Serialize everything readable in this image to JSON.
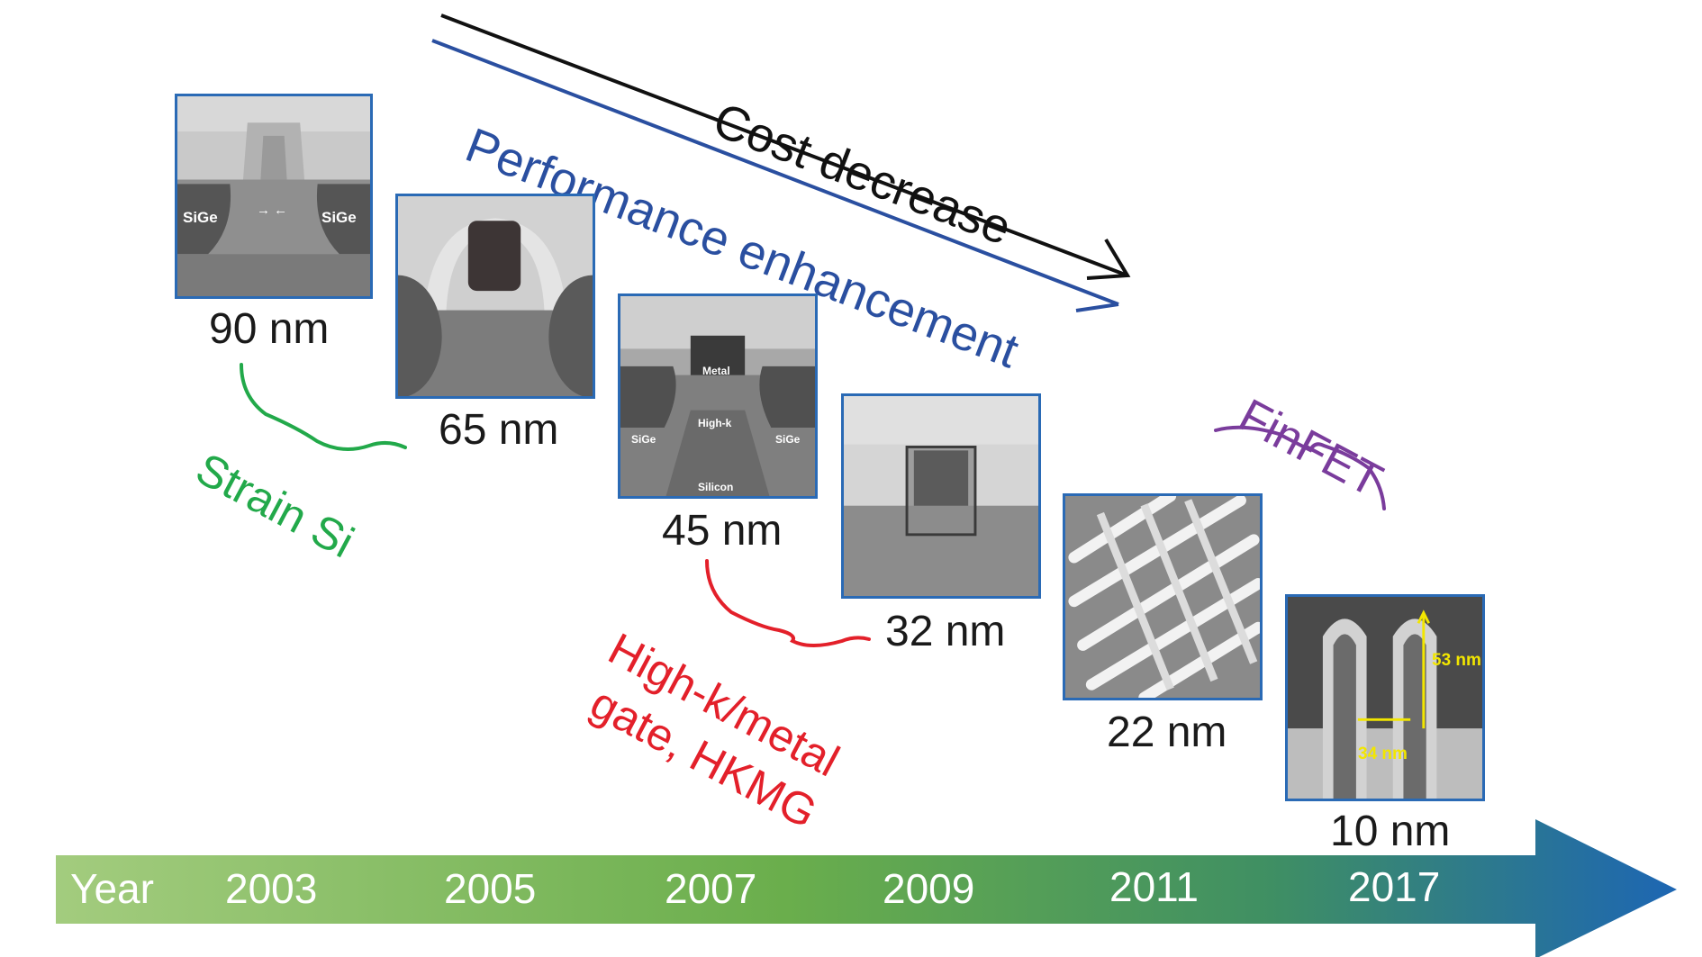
{
  "timeline": {
    "axis_label": "Year",
    "years": [
      "2003",
      "2005",
      "2007",
      "2009",
      "2011",
      "2017"
    ],
    "colors": {
      "start": "#9bc875",
      "mid": "#5aa04a",
      "end": "#1d66b3"
    }
  },
  "trend_arrows": {
    "cost": {
      "label": "Cost decrease",
      "color": "#111111"
    },
    "performance": {
      "label": "Performance enhancement",
      "color": "#2a4fa0"
    }
  },
  "nodes": [
    {
      "label": "90 nm",
      "annotations": [
        "SiGe",
        "SiGe"
      ]
    },
    {
      "label": "65 nm",
      "annotations": []
    },
    {
      "label": "45 nm",
      "annotations": [
        "Metal",
        "High-k",
        "SiGe",
        "SiGe",
        "Silicon"
      ]
    },
    {
      "label": "32 nm",
      "annotations": []
    },
    {
      "label": "22 nm",
      "annotations": []
    },
    {
      "label": "10 nm",
      "annotations": [
        "53 nm",
        "34 nm"
      ]
    }
  ],
  "technologies": {
    "strain": {
      "label": "Strain Si",
      "color": "#22a94a"
    },
    "hkmg": {
      "line1": "High-k/metal",
      "line2": "gate, HKMG",
      "color": "#e3202a"
    },
    "finfet": {
      "label": "FinFET",
      "color": "#7a3c9c"
    }
  },
  "panel_border_color": "#2a6ab5"
}
